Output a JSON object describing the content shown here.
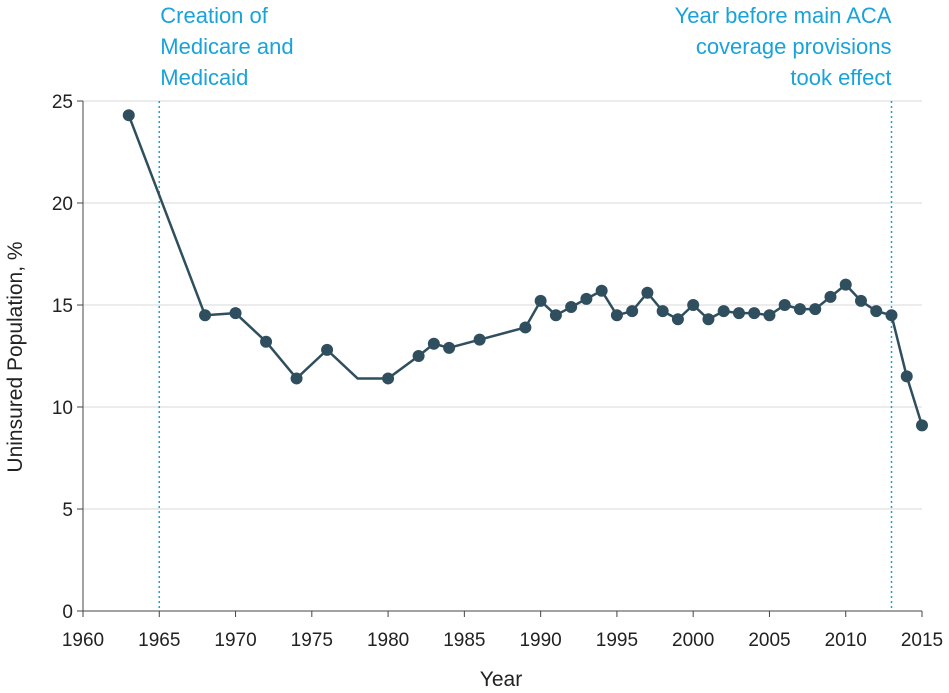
{
  "colors": {
    "series": "#2f4f5f",
    "annotation": "#1aa3d9",
    "grid": "#d9d9d9",
    "axis": "#444444"
  },
  "chart_data": {
    "type": "line",
    "title": "",
    "xlabel": "Year",
    "ylabel": "Uninsured Population, %",
    "xlim": [
      1960,
      2015
    ],
    "ylim": [
      0,
      25
    ],
    "x_ticks": [
      1960,
      1965,
      1970,
      1975,
      1980,
      1985,
      1990,
      1995,
      2000,
      2005,
      2010,
      2015
    ],
    "y_ticks": [
      0,
      5,
      10,
      15,
      20,
      25
    ],
    "grid": "horizontal",
    "series": [
      {
        "x": [
          1963,
          1968,
          1970,
          1972,
          1974,
          1976,
          1978,
          1980,
          1982,
          1983,
          1984,
          1986,
          1989,
          1990,
          1991,
          1992,
          1993,
          1994,
          1995,
          1996,
          1997,
          1998,
          1999,
          2000,
          2001,
          2002,
          2003,
          2004,
          2005,
          2006,
          2007,
          2008,
          2009,
          2010,
          2011,
          2012,
          2013,
          2014,
          2015
        ],
        "y": [
          24.3,
          14.5,
          14.6,
          13.2,
          11.4,
          12.8,
          11.4,
          11.4,
          12.5,
          13.1,
          12.9,
          13.3,
          13.9,
          15.2,
          14.5,
          14.9,
          15.3,
          15.7,
          14.5,
          14.7,
          15.6,
          14.7,
          14.3,
          15.0,
          14.3,
          14.7,
          14.6,
          14.6,
          14.5,
          15.0,
          14.8,
          14.8,
          15.4,
          16.0,
          15.2,
          14.7,
          14.5,
          11.5,
          9.1
        ],
        "markers": [
          true,
          true,
          true,
          true,
          true,
          true,
          false,
          true,
          true,
          true,
          true,
          true,
          true,
          true,
          true,
          true,
          true,
          true,
          true,
          true,
          true,
          true,
          true,
          true,
          true,
          true,
          true,
          true,
          true,
          true,
          true,
          true,
          true,
          true,
          true,
          true,
          true,
          true,
          true
        ]
      }
    ],
    "annotations": [
      {
        "x": 1965,
        "lines": [
          "Creation of",
          "Medicare and",
          "Medicaid"
        ],
        "align": "left"
      },
      {
        "x": 2013,
        "lines": [
          "Year before main ACA",
          "coverage provisions",
          "took effect"
        ],
        "align": "right"
      }
    ]
  }
}
